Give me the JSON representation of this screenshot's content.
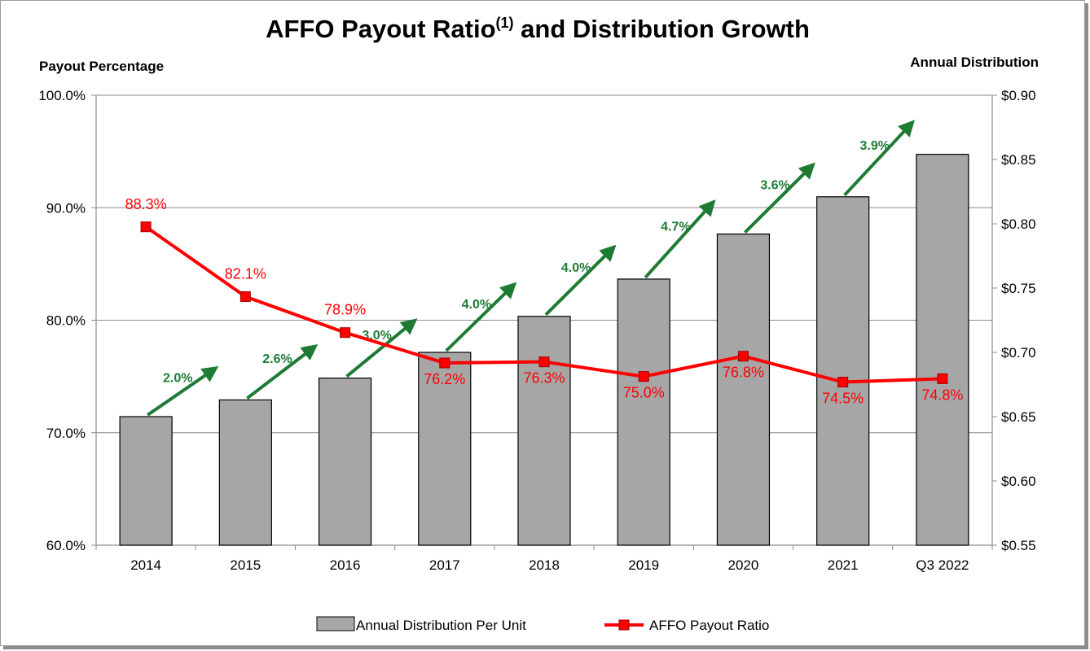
{
  "chart_data": {
    "type": "bar",
    "title": "AFFO Payout Ratio",
    "title_superscript": "(1)",
    "title_suffix": " and Distribution Growth",
    "ylabel_left": "Payout Percentage",
    "ylabel_right": "Annual Distribution",
    "categories": [
      "2014",
      "2015",
      "2016",
      "2017",
      "2018",
      "2019",
      "2020",
      "2021",
      "Q3 2022"
    ],
    "left_axis": {
      "ylim": [
        0.6,
        1.0
      ],
      "ticks": [
        0.6,
        0.7,
        0.8,
        0.9,
        1.0
      ],
      "tick_labels": [
        "60.0%",
        "70.0%",
        "80.0%",
        "90.0%",
        "100.0%"
      ]
    },
    "right_axis": {
      "ylim": [
        0.55,
        0.9
      ],
      "ticks": [
        0.55,
        0.6,
        0.65,
        0.7,
        0.75,
        0.8,
        0.85,
        0.9
      ],
      "tick_labels": [
        "$0.55",
        "$0.60",
        "$0.65",
        "$0.70",
        "$0.75",
        "$0.80",
        "$0.85",
        "$0.90"
      ]
    },
    "grid": true,
    "legend_position": "bottom",
    "series": [
      {
        "name": "Annual Distribution Per Unit",
        "type": "bar",
        "axis": "right",
        "color": "#a6a6a6",
        "values": [
          0.65,
          0.663,
          0.68,
          0.7,
          0.728,
          0.757,
          0.792,
          0.821,
          0.854
        ]
      },
      {
        "name": "AFFO Payout Ratio",
        "type": "line",
        "axis": "left",
        "color": "#ff0000",
        "values": [
          0.883,
          0.821,
          0.789,
          0.762,
          0.763,
          0.75,
          0.768,
          0.745,
          0.748
        ],
        "labels": [
          "88.3%",
          "82.1%",
          "78.9%",
          "76.2%",
          "76.3%",
          "75.0%",
          "76.8%",
          "74.5%",
          "74.8%"
        ]
      }
    ],
    "growth_annotations": {
      "color": "#1e7b34",
      "labels": [
        "2.0%",
        "2.6%",
        "3.0%",
        "4.0%",
        "4.0%",
        "4.7%",
        "3.6%",
        "3.9%"
      ]
    }
  }
}
